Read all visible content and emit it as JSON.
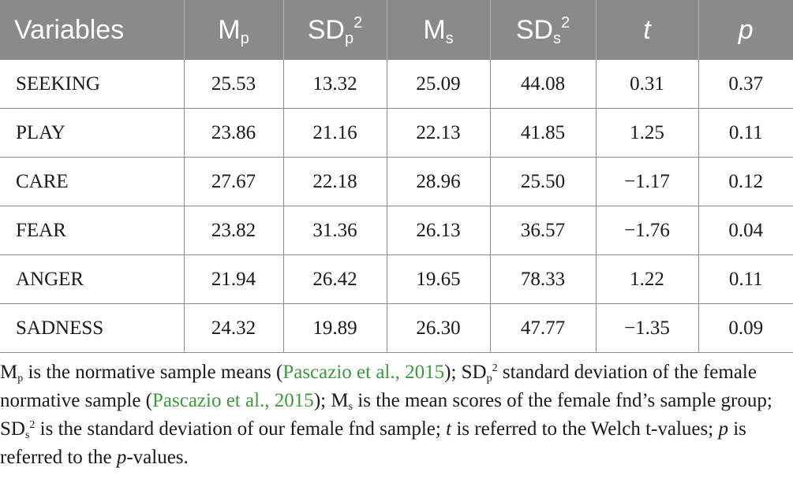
{
  "table": {
    "headers": [
      {
        "base": "Variables",
        "sub": "",
        "sup": ""
      },
      {
        "base": "M",
        "sub": "p",
        "sup": ""
      },
      {
        "base": "SD",
        "sub": "p",
        "sup": "2"
      },
      {
        "base": "M",
        "sub": "s",
        "sup": ""
      },
      {
        "base": "SD",
        "sub": "s",
        "sup": "2"
      },
      {
        "base": "t",
        "sub": "",
        "sup": ""
      },
      {
        "base": "p",
        "sub": "",
        "sup": ""
      }
    ],
    "rows": [
      [
        "SEEKING",
        "25.53",
        "13.32",
        "25.09",
        "44.08",
        "0.31",
        "0.37"
      ],
      [
        "PLAY",
        "23.86",
        "21.16",
        "22.13",
        "41.85",
        "1.25",
        "0.11"
      ],
      [
        "CARE",
        "27.67",
        "22.18",
        "28.96",
        "25.50",
        "−1.17",
        "0.12"
      ],
      [
        "FEAR",
        "23.82",
        "31.36",
        "26.13",
        "36.57",
        "−1.76",
        "0.04"
      ],
      [
        "ANGER",
        "21.94",
        "26.42",
        "19.65",
        "78.33",
        "1.22",
        "0.11"
      ],
      [
        "SADNESS",
        "24.32",
        "19.89",
        "26.30",
        "47.77",
        "−1.35",
        "0.09"
      ]
    ]
  },
  "footnote": {
    "mp_base": "M",
    "mp_sub": "p",
    "t1": " is the normative sample means (",
    "cite1": "Pascazio et al., 2015",
    "t2": "); SD",
    "sdp_sub": "p",
    "sdp_sup": "2",
    "t3": " standard deviation of the female normative sample (",
    "cite2": "Pascazio et al., 2015",
    "t4": "); M",
    "ms_sub": "s",
    "t5": " is the mean scores of the female fnd’s sample group; SD",
    "sds_sub": "s",
    "sds_sup": "2",
    "t6": " is the standard deviation of our female fnd sample; ",
    "t_it": "t",
    "t7": " is referred to the Welch t-values; ",
    "p_it": "p",
    "t8": " is referred to the ",
    "p_it2": "p",
    "t9": "-values."
  },
  "colors": {
    "header_bg": "#8a8a8a",
    "header_text": "#ffffff",
    "citation": "#3c9a3c",
    "rule": "#8a8a8a"
  }
}
